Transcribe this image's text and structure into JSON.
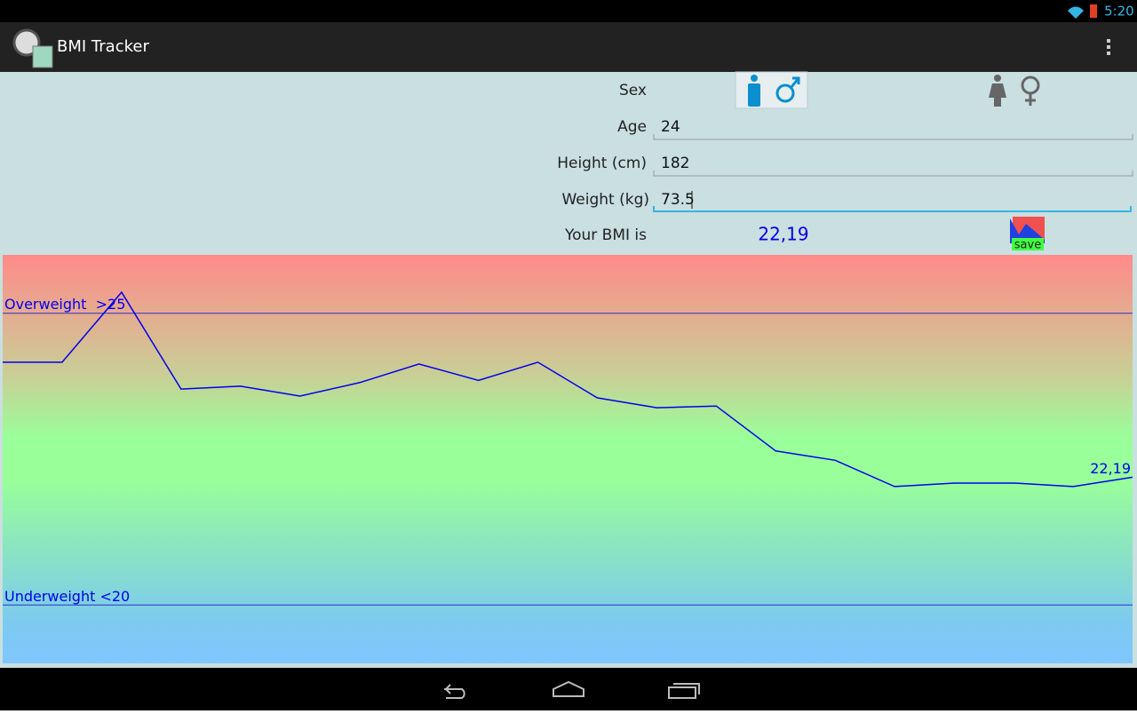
{
  "status_bar": {
    "time": "5:20"
  },
  "action_bar": {
    "title": "BMI Tracker"
  },
  "form": {
    "sex_label": "Sex",
    "age_label": "Age",
    "age": "24",
    "height_label": "Height (cm)",
    "height": "182",
    "weight_label": "Weight (kg)",
    "weight": "73.5",
    "bmi_label": "Your BMI is",
    "bmi": "22,19",
    "save_label": "save"
  },
  "chart_data": {
    "type": "line",
    "categories": [
      null,
      null,
      null,
      null,
      null,
      null,
      null,
      null,
      null,
      null,
      null,
      null,
      null,
      null,
      null,
      null,
      null,
      null,
      null,
      null
    ],
    "values": [
      24.16,
      24.16,
      25.36,
      23.7,
      23.75,
      23.58,
      23.81,
      24.13,
      23.85,
      24.16,
      23.55,
      23.38,
      23.41,
      22.64,
      22.48,
      22.03,
      22.09,
      22.09,
      22.03,
      22.19
    ],
    "value_labels": [
      null,
      null,
      null,
      null,
      null,
      null,
      null,
      null,
      null,
      null,
      null,
      null,
      null,
      null,
      null,
      null,
      null,
      null,
      null,
      "22,19"
    ],
    "color": "#0000ee",
    "ylim": [
      19,
      26
    ],
    "reference_lines": [
      {
        "value": 25,
        "label": "Overweight  >25"
      },
      {
        "value": 20,
        "label": "Underweight <20"
      }
    ],
    "reference_color": "#3030c8"
  }
}
